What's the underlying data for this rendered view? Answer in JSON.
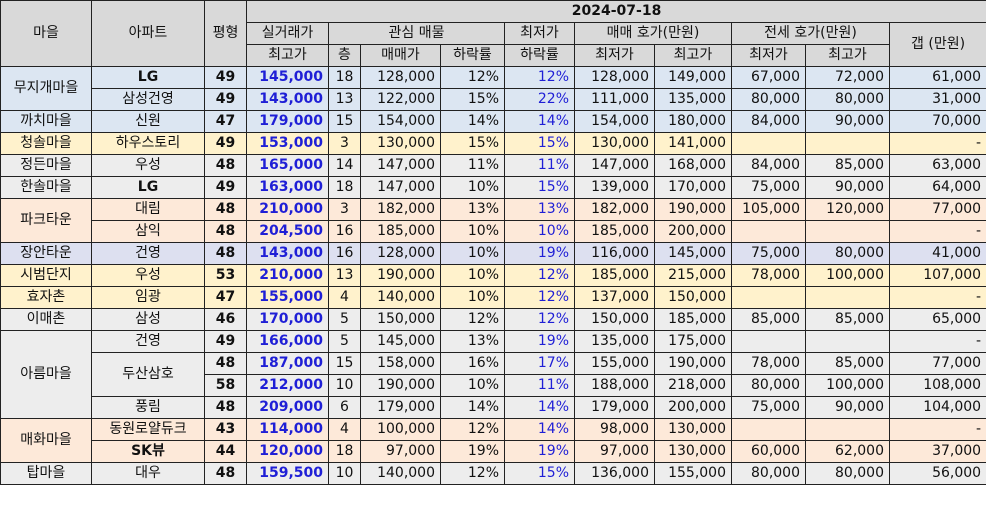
{
  "date": "2024-07-18",
  "headers": {
    "village": "마을",
    "apartment": "아파트",
    "pyeong": "평형",
    "actual_top": "실거래가",
    "actual_bottom": "최고가",
    "interest": "관심 매물",
    "floor": "층",
    "sale_price": "매매가",
    "drop_rate": "하락률",
    "lowest_top": "최저가",
    "lowest_bottom": "하락률",
    "sale_ask": "매매 호가(만원)",
    "jeonse_ask": "전세 호가(만원)",
    "min": "최저가",
    "max": "최고가",
    "gap": "갭 (만원)"
  },
  "colors": {
    "header": "#d9d9d9",
    "blue_group": "#dce6f2",
    "peach_group": "#fde9d9",
    "yellow_group": "#fff2cc",
    "gray_group": "#ededed",
    "lavender_group": "#dde0f0",
    "value_blue": "#1f1fd6"
  },
  "groups": [
    {
      "village": "무지개마을",
      "color": "#dce6f2",
      "rows": [
        {
          "apt": "LG",
          "apt_bold": true,
          "py": "49",
          "actual": "145,000",
          "floor": "18",
          "sale": "128,000",
          "drop": "12%",
          "low_drop": "12%",
          "sale_min": "128,000",
          "sale_max": "149,000",
          "j_min": "67,000",
          "j_max": "72,000",
          "gap": "61,000"
        },
        {
          "apt": "삼성건영",
          "apt_bold": false,
          "py": "49",
          "actual": "143,000",
          "floor": "13",
          "sale": "122,000",
          "drop": "15%",
          "low_drop": "22%",
          "sale_min": "111,000",
          "sale_max": "135,000",
          "j_min": "80,000",
          "j_max": "80,000",
          "gap": "31,000"
        }
      ]
    },
    {
      "village": "까치마을",
      "color": "#dce6f2",
      "rows": [
        {
          "apt": "신원",
          "apt_bold": false,
          "py": "47",
          "actual": "179,000",
          "floor": "15",
          "sale": "154,000",
          "drop": "14%",
          "low_drop": "14%",
          "sale_min": "154,000",
          "sale_max": "180,000",
          "j_min": "84,000",
          "j_max": "90,000",
          "gap": "70,000"
        }
      ]
    },
    {
      "village": "청솔마을",
      "color": "#fff2cc",
      "rows": [
        {
          "apt": "하우스토리",
          "apt_bold": false,
          "py": "49",
          "actual": "153,000",
          "floor": "3",
          "sale": "130,000",
          "drop": "15%",
          "low_drop": "15%",
          "sale_min": "130,000",
          "sale_max": "141,000",
          "j_min": "",
          "j_max": "",
          "gap": "-"
        }
      ]
    },
    {
      "village": "정든마을",
      "color": "#ededed",
      "rows": [
        {
          "apt": "우성",
          "apt_bold": false,
          "py": "48",
          "actual": "165,000",
          "floor": "14",
          "sale": "147,000",
          "drop": "11%",
          "low_drop": "11%",
          "sale_min": "147,000",
          "sale_max": "168,000",
          "j_min": "84,000",
          "j_max": "85,000",
          "gap": "63,000"
        }
      ]
    },
    {
      "village": "한솔마을",
      "color": "#ededed",
      "rows": [
        {
          "apt": "LG",
          "apt_bold": true,
          "py": "49",
          "actual": "163,000",
          "floor": "18",
          "sale": "147,000",
          "drop": "10%",
          "low_drop": "15%",
          "sale_min": "139,000",
          "sale_max": "170,000",
          "j_min": "75,000",
          "j_max": "90,000",
          "gap": "64,000"
        }
      ]
    },
    {
      "village": "파크타운",
      "color": "#fde9d9",
      "rows": [
        {
          "apt": "대림",
          "apt_bold": false,
          "py": "48",
          "actual": "210,000",
          "floor": "3",
          "sale": "182,000",
          "drop": "13%",
          "low_drop": "13%",
          "sale_min": "182,000",
          "sale_max": "190,000",
          "j_min": "105,000",
          "j_max": "120,000",
          "gap": "77,000"
        },
        {
          "apt": "삼익",
          "apt_bold": false,
          "py": "48",
          "actual": "204,500",
          "floor": "16",
          "sale": "185,000",
          "drop": "10%",
          "low_drop": "10%",
          "sale_min": "185,000",
          "sale_max": "200,000",
          "j_min": "",
          "j_max": "",
          "gap": "-"
        }
      ]
    },
    {
      "village": "장안타운",
      "color": "#dde0f0",
      "rows": [
        {
          "apt": "건영",
          "apt_bold": false,
          "py": "48",
          "actual": "143,000",
          "floor": "16",
          "sale": "128,000",
          "drop": "10%",
          "low_drop": "19%",
          "sale_min": "116,000",
          "sale_max": "145,000",
          "j_min": "75,000",
          "j_max": "80,000",
          "gap": "41,000"
        }
      ]
    },
    {
      "village": "시범단지",
      "color": "#fff2cc",
      "rows": [
        {
          "apt": "우성",
          "apt_bold": false,
          "py": "53",
          "actual": "210,000",
          "floor": "13",
          "sale": "190,000",
          "drop": "10%",
          "low_drop": "12%",
          "sale_min": "185,000",
          "sale_max": "215,000",
          "j_min": "78,000",
          "j_max": "100,000",
          "gap": "107,000"
        }
      ]
    },
    {
      "village": "효자촌",
      "color": "#fff2cc",
      "rows": [
        {
          "apt": "임광",
          "apt_bold": false,
          "py": "47",
          "actual": "155,000",
          "floor": "4",
          "sale": "140,000",
          "drop": "10%",
          "low_drop": "12%",
          "sale_min": "137,000",
          "sale_max": "150,000",
          "j_min": "",
          "j_max": "",
          "gap": "-"
        }
      ]
    },
    {
      "village": "이매촌",
      "color": "#ededed",
      "rows": [
        {
          "apt": "삼성",
          "apt_bold": false,
          "py": "46",
          "actual": "170,000",
          "floor": "5",
          "sale": "150,000",
          "drop": "12%",
          "low_drop": "12%",
          "sale_min": "150,000",
          "sale_max": "185,000",
          "j_min": "85,000",
          "j_max": "85,000",
          "gap": "65,000"
        }
      ]
    },
    {
      "village": "아름마을",
      "color": "#ededed",
      "rows": [
        {
          "apt": "건영",
          "apt_bold": false,
          "py": "49",
          "actual": "166,000",
          "floor": "5",
          "sale": "145,000",
          "drop": "13%",
          "low_drop": "19%",
          "sale_min": "135,000",
          "sale_max": "175,000",
          "j_min": "",
          "j_max": "",
          "gap": "-"
        },
        {
          "apt": "두산삼호",
          "apt_bold": false,
          "py": "48",
          "actual": "187,000",
          "floor": "15",
          "sale": "158,000",
          "drop": "16%",
          "low_drop": "17%",
          "sale_min": "155,000",
          "sale_max": "190,000",
          "j_min": "78,000",
          "j_max": "85,000",
          "gap": "77,000"
        },
        {
          "apt": "",
          "apt_bold": false,
          "py": "58",
          "actual": "212,000",
          "floor": "10",
          "sale": "190,000",
          "drop": "10%",
          "low_drop": "11%",
          "sale_min": "188,000",
          "sale_max": "218,000",
          "j_min": "80,000",
          "j_max": "100,000",
          "gap": "108,000"
        },
        {
          "apt": "풍림",
          "apt_bold": false,
          "py": "48",
          "actual": "209,000",
          "floor": "6",
          "sale": "179,000",
          "drop": "14%",
          "low_drop": "14%",
          "sale_min": "179,000",
          "sale_max": "200,000",
          "j_min": "75,000",
          "j_max": "90,000",
          "gap": "104,000"
        }
      ]
    },
    {
      "village": "매화마을",
      "color": "#fde9d9",
      "rows": [
        {
          "apt": "동원로얄듀크",
          "apt_bold": false,
          "py": "43",
          "actual": "114,000",
          "floor": "4",
          "sale": "100,000",
          "drop": "12%",
          "low_drop": "14%",
          "sale_min": "98,000",
          "sale_max": "130,000",
          "j_min": "",
          "j_max": "",
          "gap": "-"
        },
        {
          "apt": "SK뷰",
          "apt_bold": true,
          "py": "44",
          "actual": "120,000",
          "floor": "18",
          "sale": "97,000",
          "drop": "19%",
          "low_drop": "19%",
          "sale_min": "97,000",
          "sale_max": "130,000",
          "j_min": "60,000",
          "j_max": "62,000",
          "gap": "37,000"
        }
      ]
    },
    {
      "village": "탑마을",
      "color": "#ededed",
      "rows": [
        {
          "apt": "대우",
          "apt_bold": false,
          "py": "48",
          "actual": "159,500",
          "floor": "10",
          "sale": "140,000",
          "drop": "12%",
          "low_drop": "15%",
          "sale_min": "136,000",
          "sale_max": "155,000",
          "j_min": "80,000",
          "j_max": "80,000",
          "gap": "56,000"
        }
      ]
    }
  ]
}
